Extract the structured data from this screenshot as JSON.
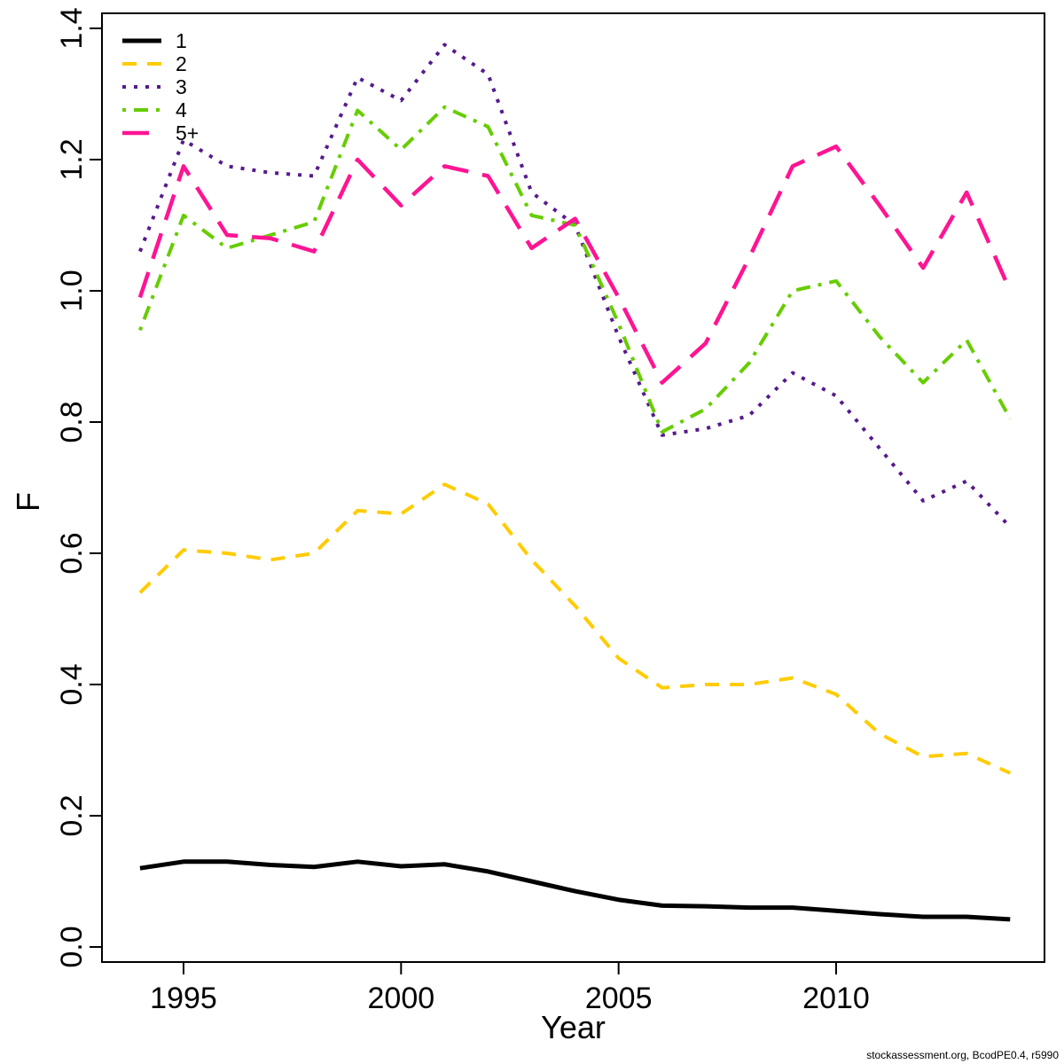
{
  "page": {
    "footer": "stockassessment.org, BcodPE0.4, r5990"
  },
  "chart_data": {
    "type": "line",
    "title": "",
    "xlabel": "Year",
    "ylabel": "F",
    "xlim": [
      1994,
      2014
    ],
    "ylim": [
      0.0,
      1.4
    ],
    "x_ticks": [
      1995,
      2000,
      2005,
      2010
    ],
    "y_ticks": [
      0.0,
      0.2,
      0.4,
      0.6,
      0.8,
      1.0,
      1.2,
      1.4
    ],
    "grid": false,
    "legend_position": "top-left",
    "x": [
      1994,
      1995,
      1996,
      1997,
      1998,
      1999,
      2000,
      2001,
      2002,
      2003,
      2004,
      2005,
      2006,
      2007,
      2008,
      2009,
      2010,
      2011,
      2012,
      2013,
      2014
    ],
    "series": [
      {
        "name": "1",
        "color": "#000000",
        "line_style": "solid",
        "width": 5,
        "values": [
          0.12,
          0.13,
          0.13,
          0.125,
          0.122,
          0.13,
          0.123,
          0.126,
          0.115,
          0.1,
          0.085,
          0.072,
          0.063,
          0.062,
          0.06,
          0.06,
          0.055,
          0.05,
          0.046,
          0.046,
          0.042
        ]
      },
      {
        "name": "2",
        "color": "#FFCC00",
        "line_style": "dashed",
        "width": 4,
        "values": [
          0.54,
          0.605,
          0.6,
          0.59,
          0.6,
          0.665,
          0.66,
          0.705,
          0.675,
          0.59,
          0.52,
          0.44,
          0.395,
          0.4,
          0.4,
          0.41,
          0.385,
          0.325,
          0.29,
          0.295,
          0.265
        ]
      },
      {
        "name": "3",
        "color": "#551A8B",
        "line_style": "dotted",
        "width": 4,
        "values": [
          1.06,
          1.23,
          1.19,
          1.18,
          1.175,
          1.325,
          1.29,
          1.375,
          1.33,
          1.15,
          1.1,
          0.93,
          0.78,
          0.79,
          0.81,
          0.875,
          0.84,
          0.76,
          0.68,
          0.71,
          0.64
        ]
      },
      {
        "name": "4",
        "color": "#66CD00",
        "line_style": "dashdot",
        "width": 4,
        "values": [
          0.94,
          1.115,
          1.065,
          1.085,
          1.105,
          1.275,
          1.215,
          1.28,
          1.25,
          1.115,
          1.1,
          0.95,
          0.785,
          0.82,
          0.89,
          1.0,
          1.015,
          0.93,
          0.86,
          0.925,
          0.805
        ]
      },
      {
        "name": "5+",
        "color": "#FF1493",
        "line_style": "longdash",
        "width": 4.5,
        "values": [
          0.99,
          1.19,
          1.085,
          1.08,
          1.06,
          1.2,
          1.13,
          1.19,
          1.175,
          1.065,
          1.11,
          0.99,
          0.86,
          0.92,
          1.05,
          1.19,
          1.22,
          1.13,
          1.035,
          1.15,
          1.0
        ]
      }
    ]
  }
}
